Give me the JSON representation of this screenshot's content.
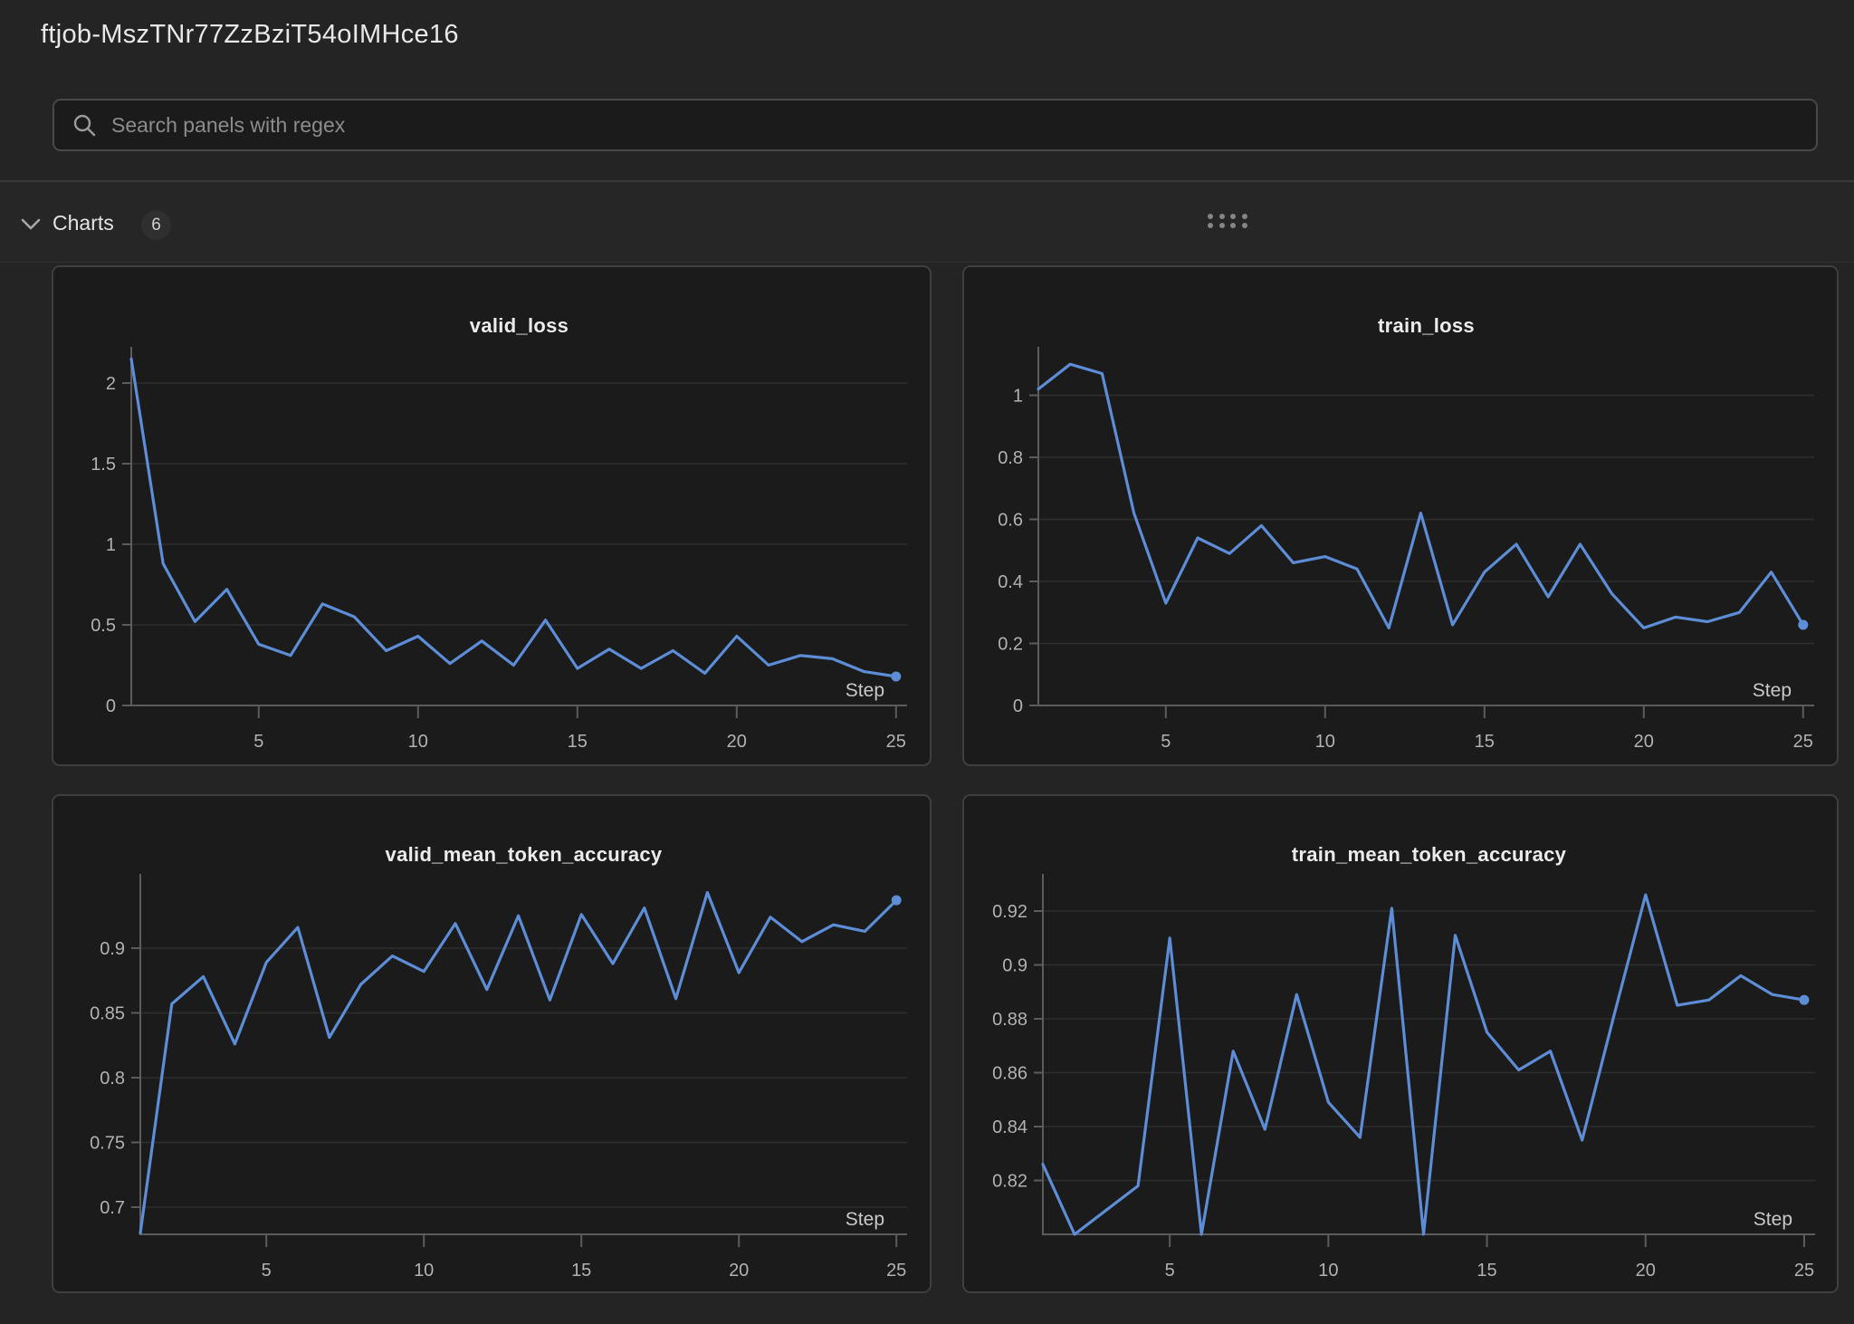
{
  "header": {
    "title": "ftjob-MszTNr77ZzBziT54oIMHce16",
    "search_placeholder": "Search panels with regex"
  },
  "section": {
    "label": "Charts",
    "count": "6"
  },
  "icons": {
    "search": "magnifier-icon",
    "collapse": "chevron-down-icon",
    "drag": "drag-handle-dots"
  },
  "colors": {
    "accent_line": "#5c8dd6",
    "panel_bg": "#1b1b1b",
    "page_bg": "#242424"
  },
  "chart_data": [
    {
      "type": "line",
      "title": "valid_loss",
      "xlabel": "Step",
      "legend": "none",
      "grid": "horizontal",
      "x": [
        1,
        2,
        3,
        4,
        5,
        6,
        7,
        8,
        9,
        10,
        11,
        12,
        13,
        14,
        15,
        16,
        17,
        18,
        19,
        20,
        21,
        22,
        23,
        24,
        25
      ],
      "values": [
        2.15,
        0.88,
        0.52,
        0.72,
        0.38,
        0.31,
        0.63,
        0.55,
        0.34,
        0.43,
        0.26,
        0.4,
        0.25,
        0.53,
        0.23,
        0.35,
        0.23,
        0.34,
        0.2,
        0.43,
        0.25,
        0.31,
        0.29,
        0.21,
        0.18
      ],
      "xticks": [
        5,
        10,
        15,
        20,
        25
      ],
      "yticks": [
        0,
        0.5,
        1,
        1.5,
        2
      ],
      "ylim": [
        0,
        2.22
      ],
      "xlim": [
        1,
        25
      ]
    },
    {
      "type": "line",
      "title": "train_loss",
      "xlabel": "Step",
      "legend": "none",
      "grid": "horizontal",
      "x": [
        1,
        2,
        3,
        4,
        5,
        6,
        7,
        8,
        9,
        10,
        11,
        12,
        13,
        14,
        15,
        16,
        17,
        18,
        19,
        20,
        21,
        22,
        23,
        24,
        25
      ],
      "values": [
        1.02,
        1.1,
        1.07,
        0.62,
        0.33,
        0.54,
        0.49,
        0.58,
        0.46,
        0.48,
        0.44,
        0.25,
        0.62,
        0.26,
        0.43,
        0.52,
        0.35,
        0.52,
        0.36,
        0.25,
        0.285,
        0.27,
        0.3,
        0.43,
        0.26
      ],
      "xticks": [
        5,
        10,
        15,
        20,
        25
      ],
      "yticks": [
        0,
        0.2,
        0.4,
        0.6,
        0.8,
        1
      ],
      "ylim": [
        0,
        1.16
      ],
      "xlim": [
        1,
        25
      ]
    },
    {
      "type": "line",
      "title": "valid_mean_token_accuracy",
      "xlabel": "Step",
      "legend": "none",
      "grid": "horizontal",
      "x": [
        1,
        2,
        3,
        4,
        5,
        6,
        7,
        8,
        9,
        10,
        11,
        12,
        13,
        14,
        15,
        16,
        17,
        18,
        19,
        20,
        21,
        22,
        23,
        24,
        25
      ],
      "values": [
        0.68,
        0.857,
        0.878,
        0.826,
        0.889,
        0.916,
        0.831,
        0.872,
        0.894,
        0.882,
        0.919,
        0.868,
        0.925,
        0.86,
        0.926,
        0.888,
        0.931,
        0.861,
        0.943,
        0.881,
        0.924,
        0.905,
        0.918,
        0.913,
        0.937
      ],
      "xticks": [
        5,
        10,
        15,
        20,
        25
      ],
      "yticks": [
        0.7,
        0.75,
        0.8,
        0.85,
        0.9
      ],
      "ylim": [
        0.679,
        0.957
      ],
      "xlim": [
        1,
        25
      ]
    },
    {
      "type": "line",
      "title": "train_mean_token_accuracy",
      "xlabel": "Step",
      "legend": "none",
      "grid": "horizontal",
      "x": [
        1,
        2,
        3,
        4,
        5,
        6,
        7,
        8,
        9,
        10,
        11,
        12,
        13,
        14,
        15,
        16,
        17,
        18,
        19,
        20,
        21,
        22,
        23,
        24,
        25
      ],
      "values": [
        0.826,
        0.8,
        0.809,
        0.818,
        0.91,
        0.8,
        0.868,
        0.839,
        0.889,
        0.849,
        0.836,
        0.921,
        0.8,
        0.911,
        0.875,
        0.861,
        0.868,
        0.835,
        0.881,
        0.926,
        0.885,
        0.887,
        0.896,
        0.889,
        0.887
      ],
      "xticks": [
        5,
        10,
        15,
        20,
        25
      ],
      "yticks": [
        0.82,
        0.84,
        0.86,
        0.88,
        0.9,
        0.92
      ],
      "ylim": [
        0.8,
        0.934
      ],
      "xlim": [
        1,
        25
      ]
    }
  ]
}
